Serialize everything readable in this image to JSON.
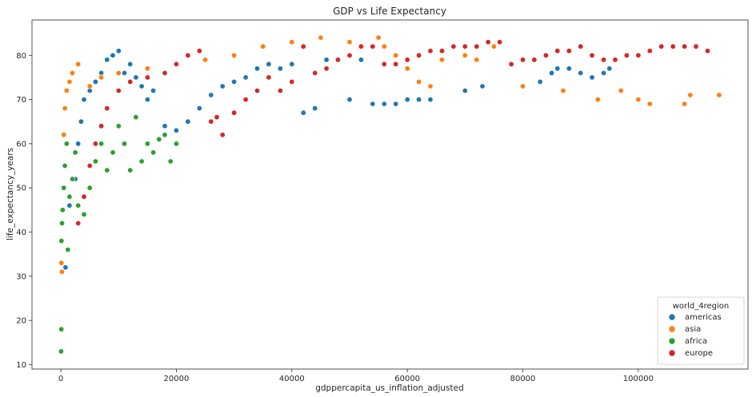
{
  "chart_data": {
    "type": "scatter",
    "title": "GDP vs Life Expectancy",
    "xlabel": "gdppercapita_us_inflation_adjusted",
    "ylabel": "life_expectancy_years",
    "xlim": [
      -5000,
      119000
    ],
    "ylim": [
      9,
      88
    ],
    "xticks": [
      0,
      20000,
      40000,
      60000,
      80000,
      100000
    ],
    "xtick_labels": [
      "0",
      "20000",
      "40000",
      "60000",
      "80000",
      "100000"
    ],
    "yticks": [
      10,
      20,
      30,
      40,
      50,
      60,
      70,
      80
    ],
    "ytick_labels": [
      "10",
      "20",
      "30",
      "40",
      "50",
      "60",
      "70",
      "80"
    ],
    "grid": false,
    "legend": {
      "title": "world_4region",
      "placement": "lower-right",
      "entries": [
        "americas",
        "asia",
        "africa",
        "europe"
      ]
    },
    "series": [
      {
        "name": "americas",
        "color": "#1f77b4",
        "points": [
          [
            800,
            32
          ],
          [
            1500,
            46
          ],
          [
            2500,
            52
          ],
          [
            3000,
            60
          ],
          [
            3500,
            65
          ],
          [
            4000,
            70
          ],
          [
            5000,
            72
          ],
          [
            6000,
            74
          ],
          [
            7000,
            76
          ],
          [
            8000,
            79
          ],
          [
            9000,
            80
          ],
          [
            10000,
            81
          ],
          [
            11000,
            76
          ],
          [
            12000,
            78
          ],
          [
            13000,
            75
          ],
          [
            14000,
            73
          ],
          [
            15000,
            70
          ],
          [
            16000,
            72
          ],
          [
            18000,
            64
          ],
          [
            20000,
            63
          ],
          [
            22000,
            65
          ],
          [
            24000,
            68
          ],
          [
            26000,
            71
          ],
          [
            28000,
            73
          ],
          [
            30000,
            74
          ],
          [
            32000,
            75
          ],
          [
            34000,
            77
          ],
          [
            36000,
            78
          ],
          [
            38000,
            77
          ],
          [
            40000,
            78
          ],
          [
            42000,
            67
          ],
          [
            44000,
            68
          ],
          [
            46000,
            79
          ],
          [
            48000,
            79
          ],
          [
            50000,
            70
          ],
          [
            52000,
            79
          ],
          [
            54000,
            69
          ],
          [
            56000,
            69
          ],
          [
            58000,
            69
          ],
          [
            60000,
            70
          ],
          [
            62000,
            70
          ],
          [
            64000,
            70
          ],
          [
            70000,
            72
          ],
          [
            73000,
            73
          ],
          [
            80000,
            73
          ],
          [
            83000,
            74
          ],
          [
            85000,
            76
          ],
          [
            86000,
            77
          ],
          [
            88000,
            77
          ],
          [
            90000,
            76
          ],
          [
            92000,
            75
          ],
          [
            94000,
            76
          ],
          [
            95000,
            77
          ]
        ]
      },
      {
        "name": "asia",
        "color": "#ff7f0e",
        "points": [
          [
            100,
            33
          ],
          [
            200,
            31
          ],
          [
            500,
            62
          ],
          [
            700,
            68
          ],
          [
            1000,
            72
          ],
          [
            1500,
            74
          ],
          [
            2000,
            76
          ],
          [
            3000,
            78
          ],
          [
            5000,
            73
          ],
          [
            7000,
            75
          ],
          [
            10000,
            76
          ],
          [
            15000,
            77
          ],
          [
            20000,
            78
          ],
          [
            25000,
            79
          ],
          [
            30000,
            80
          ],
          [
            35000,
            82
          ],
          [
            40000,
            83
          ],
          [
            45000,
            84
          ],
          [
            50000,
            83
          ],
          [
            55000,
            84
          ],
          [
            56000,
            82
          ],
          [
            58000,
            80
          ],
          [
            60000,
            77
          ],
          [
            62000,
            74
          ],
          [
            64000,
            73
          ],
          [
            66000,
            79
          ],
          [
            68000,
            82
          ],
          [
            70000,
            80
          ],
          [
            72000,
            79
          ],
          [
            75000,
            82
          ],
          [
            80000,
            73
          ],
          [
            87000,
            72
          ],
          [
            93000,
            70
          ],
          [
            97000,
            72
          ],
          [
            100000,
            70
          ],
          [
            102000,
            69
          ],
          [
            108000,
            69
          ],
          [
            109000,
            71
          ],
          [
            114000,
            71
          ]
        ]
      },
      {
        "name": "africa",
        "color": "#2ca02c",
        "points": [
          [
            50,
            13
          ],
          [
            80,
            18
          ],
          [
            100,
            38
          ],
          [
            200,
            42
          ],
          [
            300,
            45
          ],
          [
            500,
            50
          ],
          [
            700,
            55
          ],
          [
            1000,
            60
          ],
          [
            1200,
            36
          ],
          [
            1500,
            48
          ],
          [
            2000,
            52
          ],
          [
            2500,
            58
          ],
          [
            3000,
            46
          ],
          [
            4000,
            44
          ],
          [
            5000,
            50
          ],
          [
            6000,
            56
          ],
          [
            7000,
            60
          ],
          [
            8000,
            54
          ],
          [
            9000,
            58
          ],
          [
            10000,
            64
          ],
          [
            11000,
            60
          ],
          [
            12000,
            54
          ],
          [
            13000,
            66
          ],
          [
            14000,
            56
          ],
          [
            15000,
            60
          ],
          [
            16000,
            58
          ],
          [
            17000,
            61
          ],
          [
            18000,
            62
          ],
          [
            19000,
            56
          ],
          [
            20000,
            60
          ]
        ]
      },
      {
        "name": "europe",
        "color": "#d62728",
        "points": [
          [
            3000,
            42
          ],
          [
            4000,
            48
          ],
          [
            5000,
            55
          ],
          [
            6000,
            60
          ],
          [
            7000,
            64
          ],
          [
            8000,
            68
          ],
          [
            10000,
            72
          ],
          [
            12000,
            74
          ],
          [
            15000,
            75
          ],
          [
            18000,
            76
          ],
          [
            20000,
            78
          ],
          [
            22000,
            80
          ],
          [
            24000,
            81
          ],
          [
            26000,
            65
          ],
          [
            27000,
            66
          ],
          [
            28000,
            62
          ],
          [
            30000,
            67
          ],
          [
            32000,
            70
          ],
          [
            34000,
            72
          ],
          [
            36000,
            75
          ],
          [
            38000,
            72
          ],
          [
            40000,
            74
          ],
          [
            42000,
            82
          ],
          [
            44000,
            76
          ],
          [
            46000,
            77
          ],
          [
            48000,
            79
          ],
          [
            50000,
            80
          ],
          [
            52000,
            82
          ],
          [
            54000,
            82
          ],
          [
            56000,
            78
          ],
          [
            58000,
            78
          ],
          [
            60000,
            79
          ],
          [
            62000,
            80
          ],
          [
            64000,
            81
          ],
          [
            66000,
            81
          ],
          [
            68000,
            82
          ],
          [
            70000,
            82
          ],
          [
            72000,
            82
          ],
          [
            74000,
            83
          ],
          [
            76000,
            83
          ],
          [
            78000,
            78
          ],
          [
            80000,
            79
          ],
          [
            82000,
            79
          ],
          [
            84000,
            80
          ],
          [
            86000,
            81
          ],
          [
            88000,
            81
          ],
          [
            90000,
            82
          ],
          [
            92000,
            80
          ],
          [
            94000,
            79
          ],
          [
            96000,
            79
          ],
          [
            98000,
            80
          ],
          [
            100000,
            80
          ],
          [
            102000,
            81
          ],
          [
            104000,
            82
          ],
          [
            106000,
            82
          ],
          [
            108000,
            82
          ],
          [
            110000,
            82
          ],
          [
            112000,
            81
          ]
        ]
      }
    ]
  }
}
